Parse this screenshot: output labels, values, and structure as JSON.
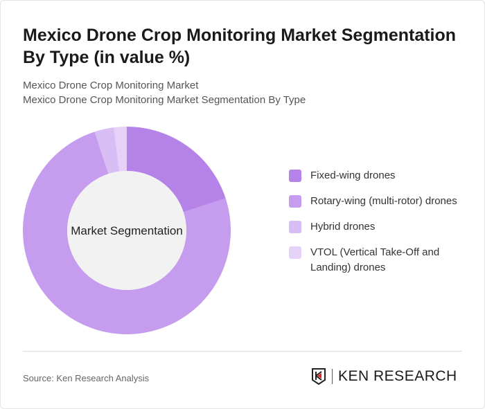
{
  "title": "Mexico Drone Crop Monitoring Market Segmentation By Type (in value %)",
  "subtitle1": "Mexico Drone Crop Monitoring Market",
  "subtitle2": "Mexico Drone Crop Monitoring Market Segmentation By Type",
  "source": "Source: Ken Research Analysis",
  "logo_text": "KEN RESEARCH",
  "chart_data": {
    "type": "pie",
    "donut": true,
    "center_label": "Market Segmentation",
    "categories": [
      "Fixed-wing drones",
      "Rotary-wing (multi-rotor) drones",
      "Hybrid drones",
      "VTOL (Vertical Take-Off and Landing) drones"
    ],
    "values": [
      20,
      75,
      3,
      2
    ],
    "colors": [
      "#b582e8",
      "#c59cee",
      "#d9bdf5",
      "#e6d2f8"
    ],
    "legend_position": "right"
  }
}
